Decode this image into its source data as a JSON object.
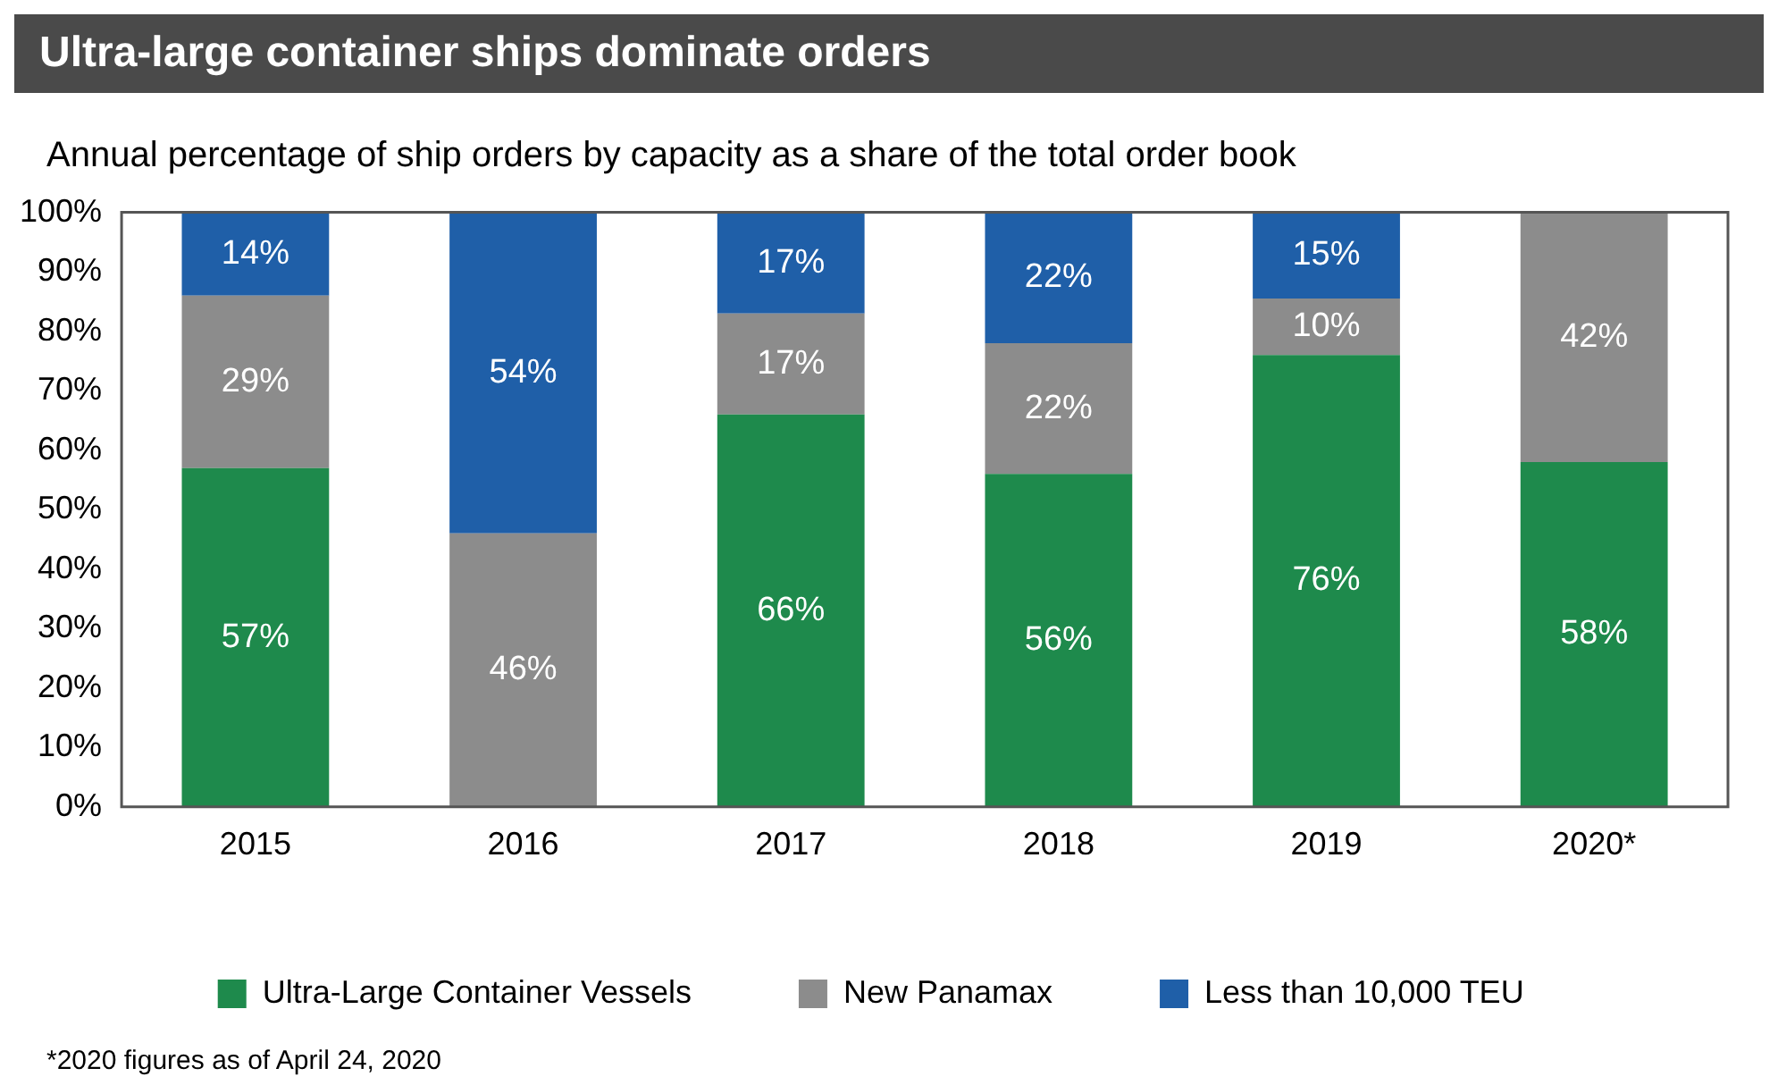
{
  "chart_data": {
    "type": "bar",
    "title": "Ultra-large container ships dominate orders",
    "subtitle": "Annual percentage of ship orders by capacity as a share of the total order book",
    "categories": [
      "2015",
      "2016",
      "2017",
      "2018",
      "2019",
      "2020*"
    ],
    "stacked": true,
    "series": [
      {
        "name": "Ultra-Large Container Vessels",
        "color": "#1e8a4c",
        "values": [
          57,
          null,
          66,
          56,
          76,
          58
        ],
        "value_labels": [
          "57%",
          null,
          "66%",
          "56%",
          "76%",
          "58%"
        ]
      },
      {
        "name": "New Panamax",
        "color": "#8c8c8c",
        "values": [
          29,
          46,
          17,
          22,
          9.5,
          42
        ],
        "value_labels": [
          "29%",
          "46%",
          "17%",
          "22%",
          "10%",
          "42%"
        ]
      },
      {
        "name": "Less than 10,000 TEU",
        "color": "#1f5fa8",
        "values": [
          14,
          54,
          17,
          22,
          14.5,
          null
        ],
        "value_labels": [
          "14%",
          "54%",
          "17%",
          "22%",
          "15%",
          null
        ]
      }
    ],
    "ylim": [
      0,
      100
    ],
    "yticks": [
      {
        "value": 0,
        "label": "0%"
      },
      {
        "value": 10,
        "label": "10%"
      },
      {
        "value": 20,
        "label": "20%"
      },
      {
        "value": 30,
        "label": "30%"
      },
      {
        "value": 40,
        "label": "40%"
      },
      {
        "value": 50,
        "label": "50%"
      },
      {
        "value": 60,
        "label": "60%"
      },
      {
        "value": 70,
        "label": "70%"
      },
      {
        "value": 80,
        "label": "80%"
      },
      {
        "value": 90,
        "label": "90%"
      },
      {
        "value": 100,
        "label": "100%"
      }
    ],
    "grid": false,
    "legend": "bottom",
    "annotations": [
      "*2020 figures as of April 24, 2020"
    ]
  }
}
